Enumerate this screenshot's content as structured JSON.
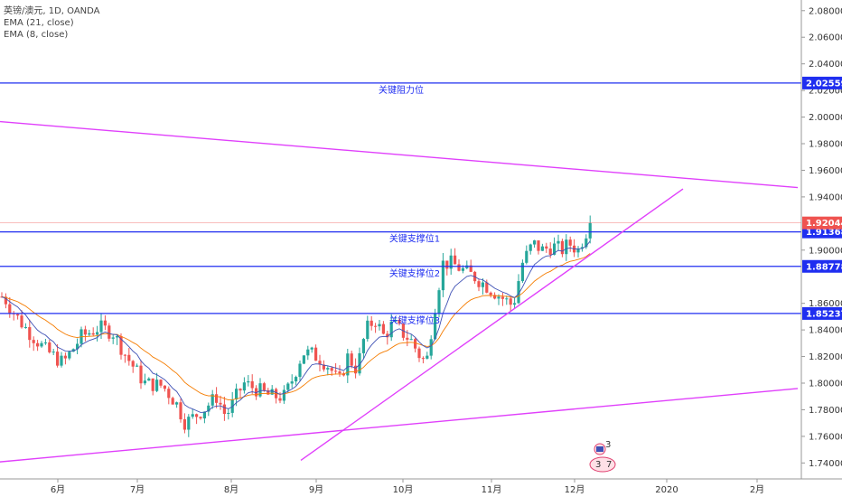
{
  "legend": {
    "symbol": "英镑/澳元, 1D, OANDA",
    "ema_long": "EMA (21, close)",
    "ema_short": "EMA (8, close)"
  },
  "colors": {
    "up": "#26a69a",
    "down": "#ef5350",
    "ema21": "#f57c00",
    "ema8": "#3f51b5",
    "level": "#1f2ef0",
    "trendline": "#e040fb",
    "last_price": "#ef5350"
  },
  "chart_data": {
    "type": "candlestick",
    "title": "英镑/澳元, 1D, OANDA",
    "y_ticks": [
      "2.08000",
      "2.06000",
      "2.04000",
      "2.02000",
      "2.00000",
      "1.98000",
      "1.96000",
      "1.94000",
      "1.90000",
      "1.86000",
      "1.84000",
      "1.82000",
      "1.80000",
      "1.78000",
      "1.76000",
      "1.74000"
    ],
    "x_ticks": [
      "6月",
      "7月",
      "8月",
      "9月",
      "10月",
      "11月",
      "12月",
      "2020",
      "2月"
    ],
    "ylim": [
      1.728,
      2.088
    ],
    "last_price": "1.92044",
    "horizontal_levels": [
      {
        "value": 2.02559,
        "label_value": "2.02559",
        "annotation": "关键阻力位"
      },
      {
        "value": 1.91368,
        "label_value": "1.91368",
        "annotation": "关键支撑位1"
      },
      {
        "value": 1.88778,
        "label_value": "1.88778",
        "annotation": "关键支撑位2"
      },
      {
        "value": 1.85237,
        "label_value": "1.85237",
        "annotation": "关键支撑位3"
      }
    ],
    "trendlines": [
      {
        "from": {
          "t": -61,
          "p": 2.0
        },
        "to": {
          "t": 883,
          "p": 1.947
        }
      },
      {
        "from": {
          "t": -61,
          "p": 1.737
        },
        "to": {
          "t": 883,
          "p": 1.796
        }
      },
      {
        "from": {
          "t": 333,
          "p": 1.742
        },
        "to": {
          "t": 756,
          "p": 1.946
        }
      }
    ],
    "ohlc_keypoints": [
      [
        4,
        1.865
      ],
      [
        16,
        1.852
      ],
      [
        30,
        1.84
      ],
      [
        50,
        1.825
      ],
      [
        70,
        1.815
      ],
      [
        90,
        1.835
      ],
      [
        110,
        1.842
      ],
      [
        125,
        1.838
      ],
      [
        140,
        1.82
      ],
      [
        160,
        1.8
      ],
      [
        180,
        1.798
      ],
      [
        195,
        1.785
      ],
      [
        205,
        1.77
      ],
      [
        215,
        1.775
      ],
      [
        225,
        1.78
      ],
      [
        240,
        1.79
      ],
      [
        250,
        1.775
      ],
      [
        260,
        1.788
      ],
      [
        270,
        1.8
      ],
      [
        285,
        1.795
      ],
      [
        300,
        1.79
      ],
      [
        315,
        1.79
      ],
      [
        325,
        1.805
      ],
      [
        335,
        1.823
      ],
      [
        345,
        1.822
      ],
      [
        355,
        1.818
      ],
      [
        365,
        1.812
      ],
      [
        375,
        1.8
      ],
      [
        385,
        1.82
      ],
      [
        395,
        1.81
      ],
      [
        405,
        1.84
      ],
      [
        415,
        1.848
      ],
      [
        425,
        1.835
      ],
      [
        435,
        1.845
      ],
      [
        445,
        1.838
      ],
      [
        455,
        1.832
      ],
      [
        465,
        1.82
      ],
      [
        472,
        1.815
      ],
      [
        480,
        1.852
      ],
      [
        490,
        1.89
      ],
      [
        500,
        1.89
      ],
      [
        512,
        1.885
      ],
      [
        525,
        1.88
      ],
      [
        535,
        1.875
      ],
      [
        548,
        1.868
      ],
      [
        560,
        1.862
      ],
      [
        568,
        1.858
      ],
      [
        578,
        1.89
      ],
      [
        590,
        1.905
      ],
      [
        600,
        1.9
      ],
      [
        612,
        1.903
      ],
      [
        622,
        1.9
      ],
      [
        630,
        1.905
      ],
      [
        640,
        1.9
      ],
      [
        648,
        1.913
      ],
      [
        656,
        1.92
      ]
    ]
  },
  "events": {
    "top_badge": "3",
    "bottom_badge_a": "3",
    "bottom_badge_b": "7"
  }
}
